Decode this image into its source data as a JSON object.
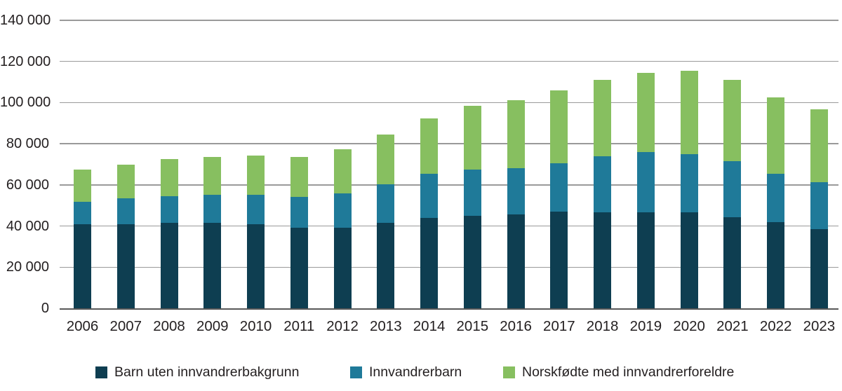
{
  "chart_data": {
    "type": "bar",
    "stacked": true,
    "title": "",
    "xlabel": "",
    "ylabel": "",
    "categories": [
      "2006",
      "2007",
      "2008",
      "2009",
      "2010",
      "2011",
      "2012",
      "2013",
      "2014",
      "2015",
      "2016",
      "2017",
      "2018",
      "2019",
      "2020",
      "2021",
      "2022",
      "2023"
    ],
    "series": [
      {
        "name": "Barn uten innvandrerbakgrunn",
        "color": "#0e3e51",
        "values": [
          41000,
          41000,
          41700,
          41600,
          41000,
          39200,
          39300,
          41400,
          44000,
          45000,
          45700,
          46900,
          46800,
          46800,
          46800,
          44300,
          42000,
          38400
        ]
      },
      {
        "name": "Innvandrerbarn",
        "color": "#1f7a99",
        "values": [
          10700,
          12500,
          12700,
          13600,
          14300,
          15100,
          16500,
          18800,
          21500,
          22300,
          22400,
          23700,
          27200,
          29100,
          28200,
          27200,
          23500,
          22800
        ]
      },
      {
        "name": "Norskfødte med innvandrerforeldre",
        "color": "#87bf60",
        "values": [
          15600,
          16500,
          18100,
          18300,
          19000,
          19300,
          21600,
          24200,
          26700,
          31100,
          33000,
          35300,
          37100,
          38700,
          40600,
          39600,
          37000,
          35500
        ]
      }
    ],
    "totals": [
      67300,
      70000,
      72500,
      73500,
      74300,
      73600,
      77400,
      84400,
      92200,
      98400,
      101100,
      105900,
      111100,
      114600,
      115600,
      111100,
      102500,
      96700
    ],
    "ylim": [
      0,
      140000
    ],
    "ytick_values": [
      0,
      20000,
      40000,
      60000,
      80000,
      100000,
      120000,
      140000
    ],
    "ytick_labels": [
      "0",
      "20 000",
      "40 000",
      "60 000",
      "80 000",
      "100 000",
      "120 000",
      "140 000"
    ],
    "grid": "horizontal",
    "legend_position": "bottom",
    "colors": {
      "grid": "#9a9a9a",
      "baseline": "#595959",
      "text": "#231f20",
      "background": "#ffffff"
    }
  }
}
